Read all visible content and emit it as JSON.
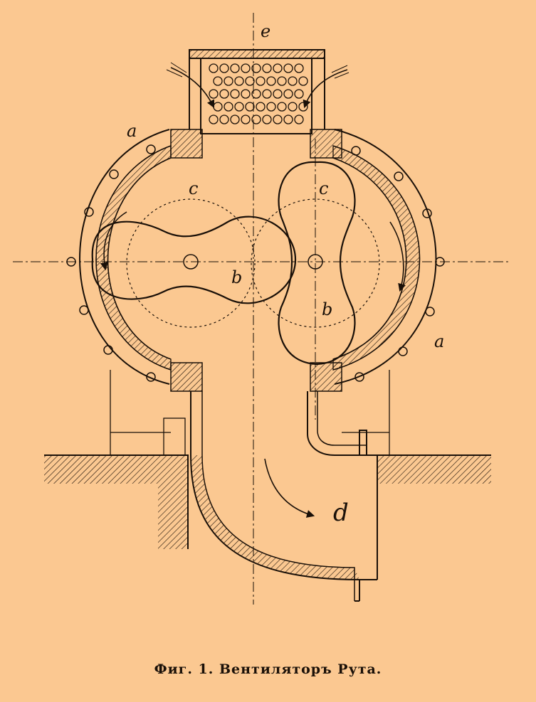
{
  "labels": {
    "e": "e",
    "a_top": "a",
    "a_right": "a",
    "c_left": "c",
    "c_right": "c",
    "b_left": "b",
    "b_right": "b",
    "d": "d"
  },
  "caption": "Фиг. 1. Вентиляторъ Рута.",
  "colors": {
    "paper": "#fbc891",
    "ink": "#1a1008"
  }
}
